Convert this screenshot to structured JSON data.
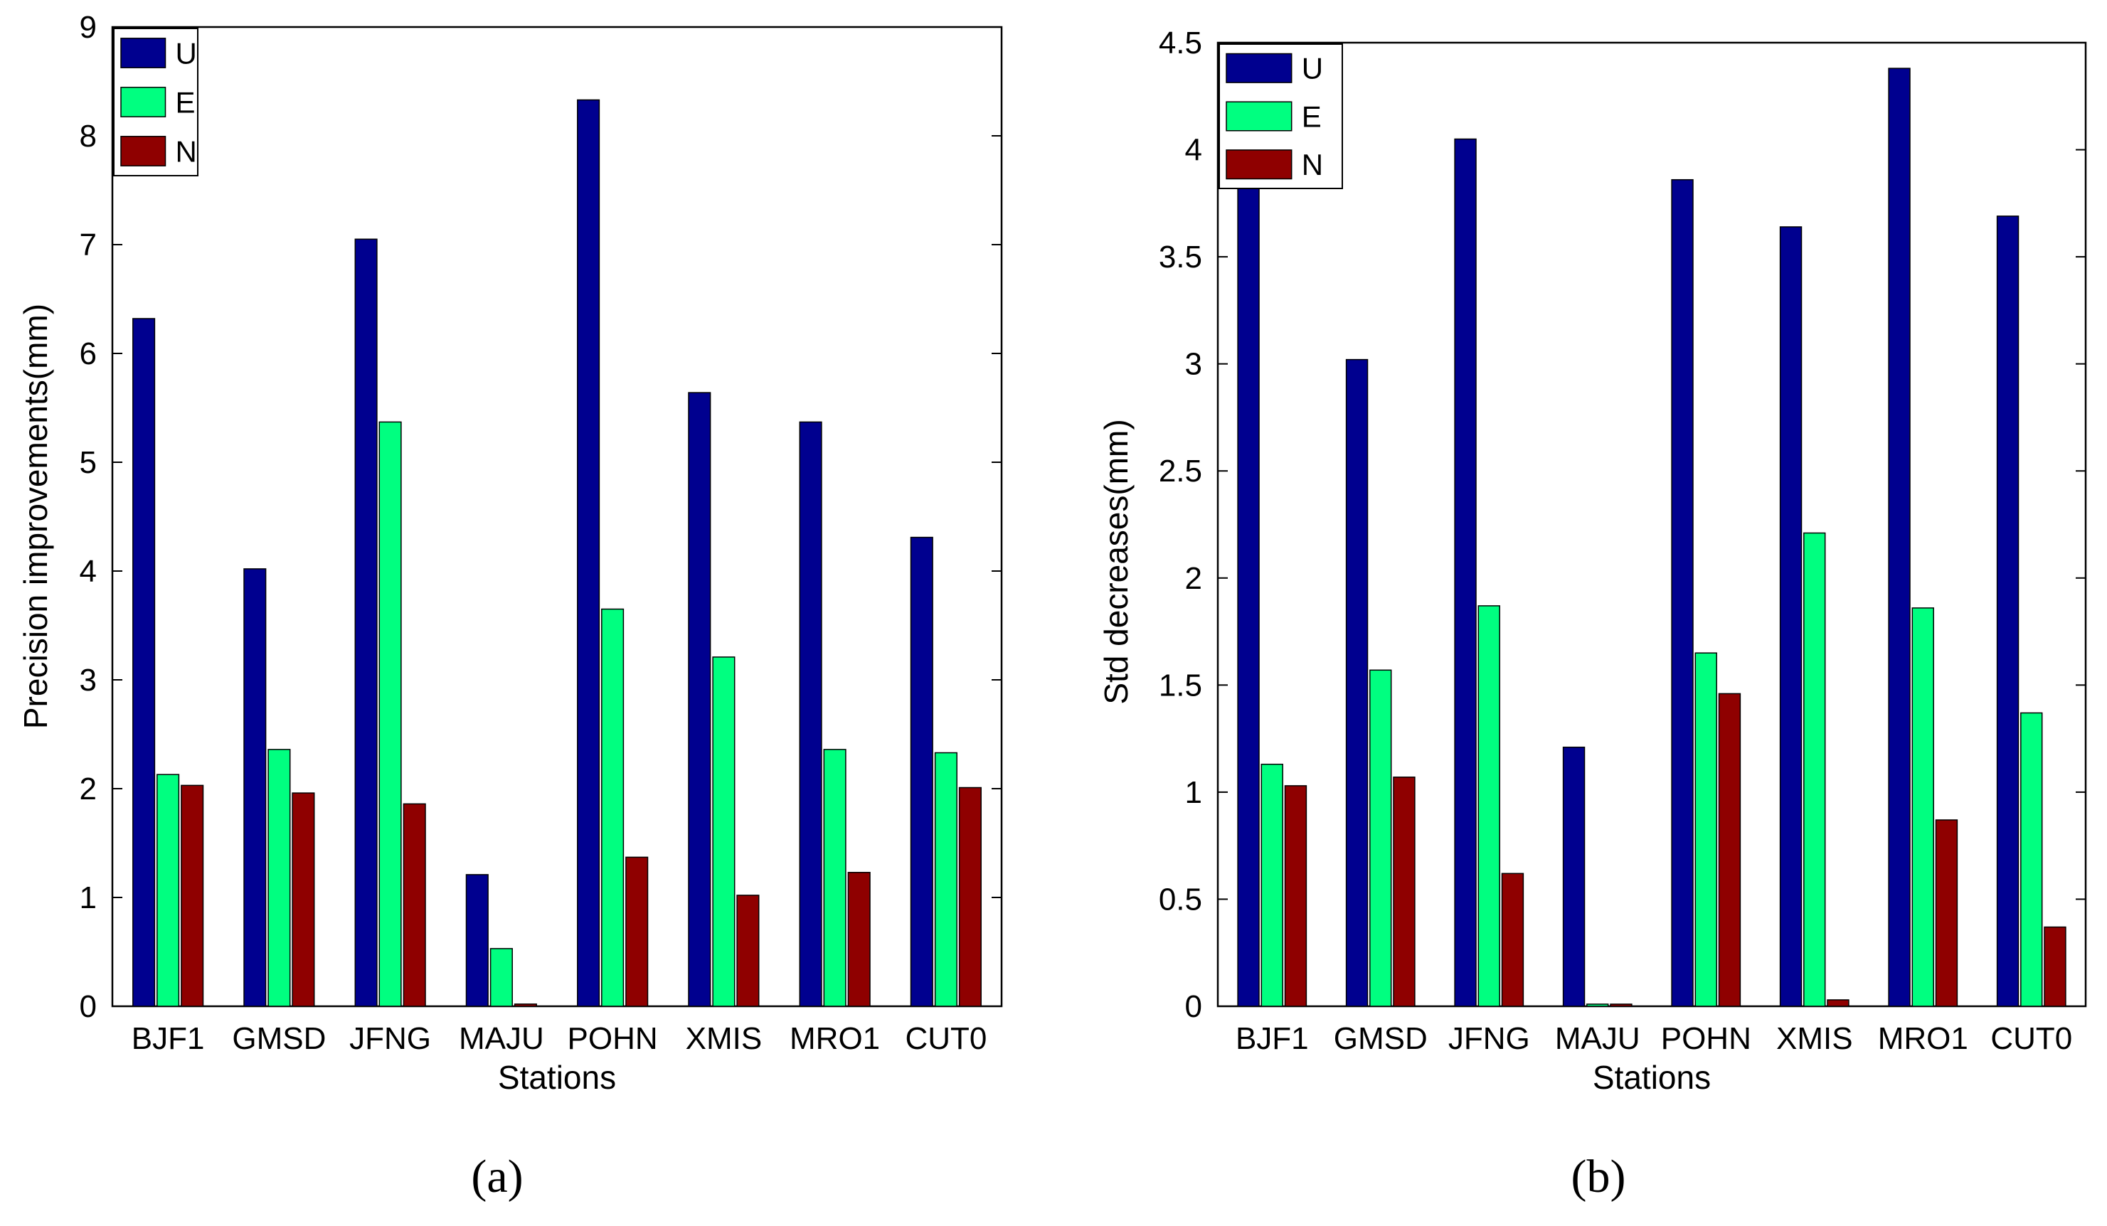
{
  "colors": {
    "U": "#00008f",
    "E": "#00ff80",
    "N": "#8f0000",
    "axis": "#000000",
    "background": "#ffffff"
  },
  "chart_data": [
    {
      "type": "bar",
      "panel_label": "(a)",
      "categories": [
        "BJF1",
        "GMSD",
        "JFNG",
        "MAJU",
        "POHN",
        "XMIS",
        "MRO1",
        "CUT0"
      ],
      "series": [
        {
          "name": "U",
          "values": [
            6.32,
            4.02,
            7.05,
            1.21,
            8.33,
            5.64,
            5.37,
            4.31
          ]
        },
        {
          "name": "E",
          "values": [
            2.13,
            2.36,
            5.37,
            0.53,
            3.65,
            3.21,
            2.36,
            2.33
          ]
        },
        {
          "name": "N",
          "values": [
            2.03,
            1.96,
            1.86,
            0.02,
            1.37,
            1.02,
            1.23,
            2.01
          ]
        }
      ],
      "title": "",
      "xlabel": "Stations",
      "ylabel": "Precision improvements(mm)",
      "ylim": [
        0,
        9
      ],
      "yticks": [
        0,
        1,
        2,
        3,
        4,
        5,
        6,
        7,
        8,
        9
      ],
      "ytick_labels": [
        "0",
        "1",
        "2",
        "3",
        "4",
        "5",
        "6",
        "7",
        "8",
        "9"
      ],
      "legend": {
        "position": "top-left",
        "entries": [
          "U",
          "E",
          "N"
        ]
      },
      "grid": false
    },
    {
      "type": "bar",
      "panel_label": "(b)",
      "categories": [
        "BJF1",
        "GMSD",
        "JFNG",
        "MAJU",
        "POHN",
        "XMIS",
        "MRO1",
        "CUT0"
      ],
      "series": [
        {
          "name": "U",
          "values": [
            3.85,
            3.02,
            4.05,
            1.21,
            3.86,
            3.64,
            4.38,
            3.69
          ]
        },
        {
          "name": "E",
          "values": [
            1.13,
            1.57,
            1.87,
            0.01,
            1.65,
            2.21,
            1.86,
            1.37
          ]
        },
        {
          "name": "N",
          "values": [
            1.03,
            1.07,
            0.62,
            0.01,
            1.46,
            0.03,
            0.87,
            0.37
          ]
        }
      ],
      "title": "",
      "xlabel": "Stations",
      "ylabel": "Std decreases(mm)",
      "ylim": [
        0,
        4.5
      ],
      "yticks": [
        0,
        0.5,
        1,
        1.5,
        2,
        2.5,
        3,
        3.5,
        4,
        4.5
      ],
      "ytick_labels": [
        "0",
        "0.5",
        "1",
        "1.5",
        "2",
        "2.5",
        "3",
        "3.5",
        "4",
        "4.5"
      ],
      "legend": {
        "position": "top-left",
        "entries": [
          "U",
          "E",
          "N"
        ]
      },
      "grid": false
    }
  ]
}
